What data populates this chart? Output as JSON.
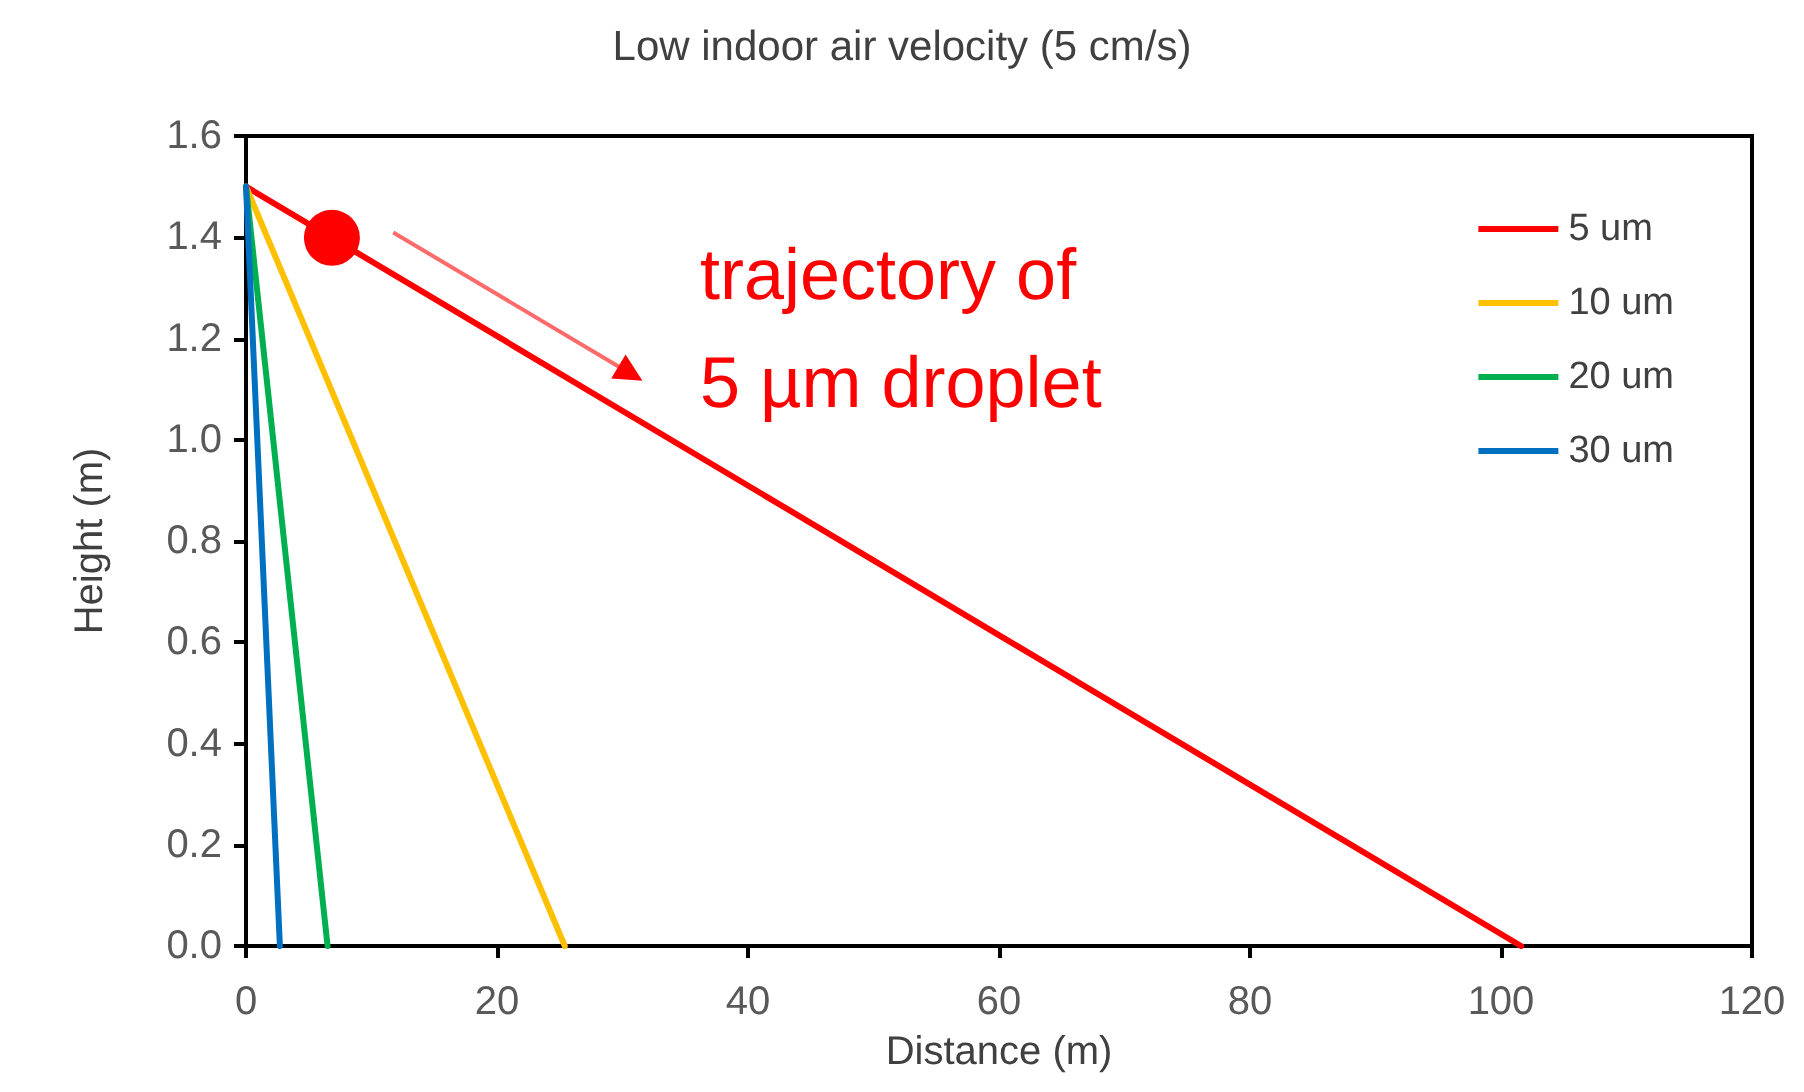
{
  "chart_data": {
    "type": "line",
    "title": "Low indoor air velocity (5 cm/s)",
    "xlabel": "Distance (m)",
    "ylabel": "Height (m)",
    "series": [
      {
        "name": "5 um",
        "color": "#ff0000",
        "x": [
          0,
          101.6
        ],
        "values": [
          1.5,
          0
        ]
      },
      {
        "name": "10 um",
        "color": "#ffc000",
        "x": [
          0,
          25.4
        ],
        "values": [
          1.5,
          0
        ]
      },
      {
        "name": "20 um",
        "color": "#00b050",
        "x": [
          0,
          6.5
        ],
        "values": [
          1.5,
          0
        ]
      },
      {
        "name": "30 um",
        "color": "#0070c0",
        "x": [
          0,
          2.7
        ],
        "values": [
          1.5,
          0
        ]
      }
    ],
    "annotations": [
      "trajectory of\n5 µm droplet"
    ],
    "xlim": [
      0,
      120
    ],
    "xticks": [
      0,
      20,
      40,
      60,
      80,
      100,
      120
    ],
    "ylim": [
      0,
      1.6
    ],
    "yticks": [
      {
        "value": 0,
        "label": "0.0"
      },
      0.2,
      0.4,
      0.6,
      0.8,
      {
        "value": 1,
        "label": "1.0"
      },
      1.2,
      1.4,
      1.6
    ],
    "grid": false,
    "legend": "top right",
    "marker": "none",
    "line_style": "solid"
  }
}
